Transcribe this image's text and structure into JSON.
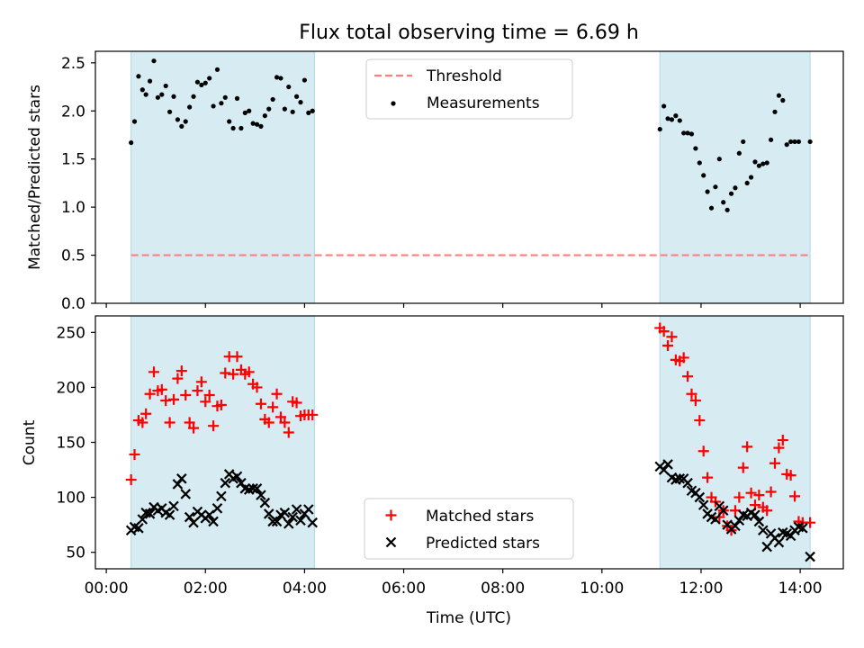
{
  "title": "Flux total observing time = 6.69 h",
  "xlabel": "Time (UTC)",
  "chart_data": [
    {
      "type": "scatter",
      "ylabel": "Matched/Predicted stars",
      "ylim": [
        0,
        2.62
      ],
      "yticks": [
        "0.0",
        "0.5",
        "1.0",
        "1.5",
        "2.0",
        "2.5"
      ],
      "ytick_values": [
        0,
        0.5,
        1.0,
        1.5,
        2.0,
        2.5
      ],
      "xlim": [
        -0.22,
        14.87
      ],
      "xticks": [
        "00:00",
        "02:00",
        "04:00",
        "06:00",
        "08:00",
        "10:00",
        "12:00",
        "14:00"
      ],
      "xtick_values": [
        0,
        2,
        4,
        6,
        8,
        10,
        12,
        14
      ],
      "xtick_labels_visible": false,
      "legend": {
        "placement": "upper center",
        "entries": [
          "Threshold",
          "Measurements"
        ]
      },
      "threshold": {
        "name": "Threshold",
        "value": 0.5,
        "x_range": [
          0.5,
          14.2
        ],
        "color": "#ff7f7f",
        "style": "dashed"
      },
      "shaded_intervals": [
        [
          0.5,
          4.2
        ],
        [
          11.17,
          14.2
        ]
      ],
      "shade_color": "#add8e6",
      "series": [
        {
          "name": "Measurements",
          "color": "#000000",
          "marker": "dot",
          "x": [
            0.5,
            0.57,
            0.65,
            0.73,
            0.8,
            0.88,
            0.96,
            1.04,
            1.12,
            1.2,
            1.28,
            1.36,
            1.44,
            1.52,
            1.6,
            1.68,
            1.76,
            1.84,
            1.92,
            2.0,
            2.08,
            2.16,
            2.24,
            2.32,
            2.4,
            2.48,
            2.56,
            2.64,
            2.72,
            2.8,
            2.88,
            2.96,
            3.04,
            3.12,
            3.2,
            3.28,
            3.36,
            3.44,
            3.52,
            3.6,
            3.68,
            3.76,
            3.84,
            3.92,
            4.0,
            4.08,
            4.16,
            11.17,
            11.25,
            11.33,
            11.41,
            11.49,
            11.57,
            11.65,
            11.73,
            11.81,
            11.89,
            11.97,
            12.05,
            12.13,
            12.21,
            12.29,
            12.37,
            12.45,
            12.53,
            12.61,
            12.69,
            12.77,
            12.85,
            12.93,
            13.01,
            13.09,
            13.17,
            13.25,
            13.33,
            13.41,
            13.49,
            13.57,
            13.65,
            13.73,
            13.81,
            13.89,
            13.97,
            14.2
          ],
          "y": [
            1.67,
            1.89,
            2.36,
            2.22,
            2.17,
            2.31,
            2.52,
            2.14,
            2.17,
            2.26,
            1.99,
            2.15,
            1.91,
            1.84,
            1.89,
            2.04,
            2.15,
            2.3,
            2.27,
            2.29,
            2.34,
            2.05,
            2.43,
            2.08,
            2.14,
            1.89,
            1.82,
            2.13,
            1.82,
            1.98,
            2.0,
            1.87,
            1.86,
            1.84,
            1.95,
            2.02,
            2.12,
            2.35,
            2.34,
            2.02,
            2.25,
            1.99,
            2.15,
            2.09,
            2.32,
            1.98,
            2.0,
            1.81,
            2.05,
            1.92,
            1.91,
            1.95,
            1.9,
            1.77,
            1.77,
            1.76,
            1.61,
            1.46,
            1.33,
            1.16,
            0.99,
            1.21,
            1.5,
            1.05,
            0.97,
            1.14,
            1.2,
            1.56,
            1.68,
            1.25,
            1.31,
            1.47,
            1.43,
            1.45,
            1.46,
            1.7,
            1.99,
            2.16,
            2.11,
            1.65,
            1.68,
            1.68,
            1.68,
            1.68
          ]
        }
      ]
    },
    {
      "type": "scatter",
      "ylabel": "Count",
      "ylim": [
        35,
        265
      ],
      "yticks": [
        "50",
        "100",
        "150",
        "200",
        "250"
      ],
      "ytick_values": [
        50,
        100,
        150,
        200,
        250
      ],
      "xlim": [
        -0.22,
        14.87
      ],
      "xticks": [
        "00:00",
        "02:00",
        "04:00",
        "06:00",
        "08:00",
        "10:00",
        "12:00",
        "14:00"
      ],
      "xtick_values": [
        0,
        2,
        4,
        6,
        8,
        10,
        12,
        14
      ],
      "xtick_labels_visible": true,
      "legend": {
        "placement": "lower center",
        "entries": [
          "Matched stars",
          "Predicted stars"
        ]
      },
      "shaded_intervals": [
        [
          0.5,
          4.2
        ],
        [
          11.17,
          14.2
        ]
      ],
      "shade_color": "#add8e6",
      "series": [
        {
          "name": "Matched stars",
          "color": "#ff0000",
          "marker": "plus",
          "x": [
            0.5,
            0.57,
            0.65,
            0.73,
            0.8,
            0.88,
            0.96,
            1.04,
            1.12,
            1.2,
            1.28,
            1.36,
            1.44,
            1.52,
            1.6,
            1.68,
            1.76,
            1.84,
            1.92,
            2.0,
            2.08,
            2.16,
            2.24,
            2.32,
            2.4,
            2.48,
            2.56,
            2.64,
            2.72,
            2.8,
            2.88,
            2.96,
            3.04,
            3.12,
            3.2,
            3.28,
            3.36,
            3.44,
            3.52,
            3.6,
            3.68,
            3.76,
            3.84,
            3.92,
            4.0,
            4.08,
            4.16,
            11.17,
            11.25,
            11.33,
            11.41,
            11.49,
            11.57,
            11.65,
            11.73,
            11.81,
            11.89,
            11.97,
            12.05,
            12.13,
            12.21,
            12.29,
            12.37,
            12.45,
            12.53,
            12.61,
            12.69,
            12.77,
            12.85,
            12.93,
            13.01,
            13.09,
            13.17,
            13.25,
            13.33,
            13.41,
            13.49,
            13.57,
            13.65,
            13.73,
            13.81,
            13.89,
            13.97,
            14.05,
            14.2
          ],
          "y": [
            116,
            139,
            170,
            168,
            176,
            194,
            214,
            197,
            198,
            188,
            168,
            189,
            208,
            215,
            193,
            168,
            163,
            197,
            205,
            187,
            193,
            165,
            183,
            184,
            213,
            228,
            212,
            228,
            216,
            212,
            214,
            203,
            200,
            185,
            171,
            168,
            182,
            194,
            173,
            168,
            159,
            187,
            186,
            174,
            175,
            175,
            175,
            254,
            251,
            238,
            246,
            225,
            224,
            227,
            210,
            194,
            188,
            170,
            142,
            118,
            100,
            96,
            82,
            88,
            74,
            70,
            88,
            100,
            127,
            146,
            104,
            93,
            102,
            91,
            88,
            105,
            131,
            145,
            152,
            121,
            120,
            101,
            78,
            77,
            77
          ]
        },
        {
          "name": "Predicted stars",
          "color": "#000000",
          "marker": "x",
          "x": [
            0.5,
            0.57,
            0.65,
            0.73,
            0.8,
            0.88,
            0.96,
            1.04,
            1.12,
            1.2,
            1.28,
            1.36,
            1.44,
            1.52,
            1.6,
            1.68,
            1.76,
            1.84,
            1.92,
            2.0,
            2.08,
            2.16,
            2.24,
            2.32,
            2.4,
            2.48,
            2.56,
            2.64,
            2.72,
            2.8,
            2.88,
            2.96,
            3.04,
            3.12,
            3.2,
            3.28,
            3.36,
            3.44,
            3.52,
            3.6,
            3.68,
            3.76,
            3.84,
            3.92,
            4.0,
            4.08,
            4.16,
            11.17,
            11.25,
            11.33,
            11.41,
            11.49,
            11.57,
            11.65,
            11.73,
            11.81,
            11.89,
            11.97,
            12.05,
            12.13,
            12.21,
            12.29,
            12.37,
            12.45,
            12.53,
            12.61,
            12.69,
            12.77,
            12.85,
            12.93,
            13.01,
            13.09,
            13.17,
            13.25,
            13.33,
            13.41,
            13.49,
            13.57,
            13.65,
            13.73,
            13.81,
            13.89,
            13.97,
            14.05,
            14.2
          ],
          "y": [
            70,
            73,
            72,
            80,
            86,
            85,
            91,
            88,
            90,
            86,
            84,
            92,
            112,
            117,
            103,
            82,
            77,
            87,
            84,
            81,
            84,
            78,
            90,
            101,
            113,
            121,
            117,
            119,
            113,
            108,
            107,
            108,
            108,
            102,
            95,
            85,
            78,
            78,
            84,
            86,
            76,
            82,
            89,
            79,
            85,
            89,
            77,
            128,
            125,
            130,
            118,
            116,
            117,
            117,
            113,
            106,
            104,
            100,
            93,
            85,
            82,
            80,
            92,
            88,
            75,
            71,
            74,
            79,
            84,
            83,
            86,
            84,
            78,
            70,
            55,
            67,
            63,
            59,
            68,
            67,
            65,
            70,
            73,
            72,
            46
          ]
        }
      ]
    }
  ]
}
